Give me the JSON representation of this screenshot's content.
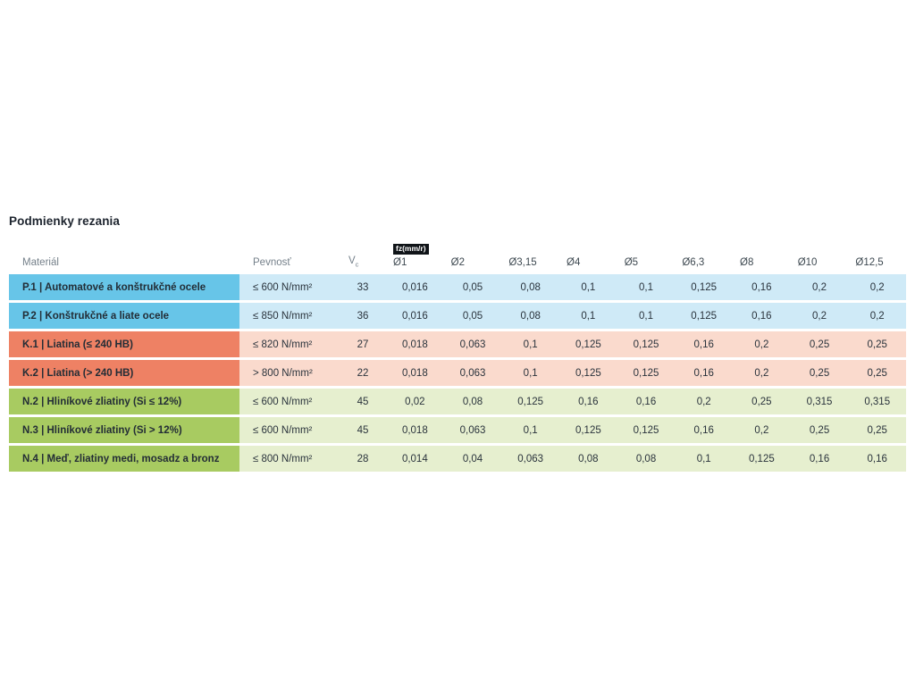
{
  "page": {
    "title": "Podmienky rezania"
  },
  "table": {
    "headers": {
      "material": "Materiál",
      "strength": "Pevnosť",
      "vc_base": "V",
      "vc_sub": "c",
      "fz_badge": "fz(mm/r)",
      "diameters": [
        "Ø1",
        "Ø2",
        "Ø3,15",
        "Ø4",
        "Ø5",
        "Ø6,3",
        "Ø8",
        "Ø10",
        "Ø12,5"
      ]
    },
    "groups": {
      "P": {
        "dark": "#67c5e8",
        "light": "#cfeaf7"
      },
      "K": {
        "dark": "#ee8164",
        "light": "#fadacd"
      },
      "N": {
        "dark": "#a8cb61",
        "light": "#e6efcf"
      }
    },
    "rows": [
      {
        "group": "P",
        "material": "P.1 | Automatové a konštrukčné ocele",
        "strength": "≤ 600 N/mm²",
        "vc": "33",
        "fz": [
          "0,016",
          "0,05",
          "0,08",
          "0,1",
          "0,1",
          "0,125",
          "0,16",
          "0,2",
          "0,2"
        ]
      },
      {
        "group": "P",
        "material": "P.2 | Konštrukčné a liate ocele",
        "strength": "≤ 850 N/mm²",
        "vc": "36",
        "fz": [
          "0,016",
          "0,05",
          "0,08",
          "0,1",
          "0,1",
          "0,125",
          "0,16",
          "0,2",
          "0,2"
        ]
      },
      {
        "group": "K",
        "material": "K.1 | Liatina (≤ 240 HB)",
        "strength": "≤ 820 N/mm²",
        "vc": "27",
        "fz": [
          "0,018",
          "0,063",
          "0,1",
          "0,125",
          "0,125",
          "0,16",
          "0,2",
          "0,25",
          "0,25"
        ]
      },
      {
        "group": "K",
        "material": "K.2 | Liatina (> 240 HB)",
        "strength": "> 800 N/mm²",
        "vc": "22",
        "fz": [
          "0,018",
          "0,063",
          "0,1",
          "0,125",
          "0,125",
          "0,16",
          "0,2",
          "0,25",
          "0,25"
        ]
      },
      {
        "group": "N",
        "material": "N.2 | Hliníkové zliatiny (Si ≤ 12%)",
        "strength": "≤ 600 N/mm²",
        "vc": "45",
        "fz": [
          "0,02",
          "0,08",
          "0,125",
          "0,16",
          "0,16",
          "0,2",
          "0,25",
          "0,315",
          "0,315"
        ]
      },
      {
        "group": "N",
        "material": "N.3 | Hliníkové zliatiny (Si > 12%)",
        "strength": "≤ 600 N/mm²",
        "vc": "45",
        "fz": [
          "0,018",
          "0,063",
          "0,1",
          "0,125",
          "0,125",
          "0,16",
          "0,2",
          "0,25",
          "0,25"
        ]
      },
      {
        "group": "N",
        "material": "N.4 | Meď, zliatiny medi, mosadz a bronz",
        "strength": "≤ 800 N/mm²",
        "vc": "28",
        "fz": [
          "0,014",
          "0,04",
          "0,063",
          "0,08",
          "0,08",
          "0,1",
          "0,125",
          "0,16",
          "0,16"
        ]
      }
    ]
  }
}
